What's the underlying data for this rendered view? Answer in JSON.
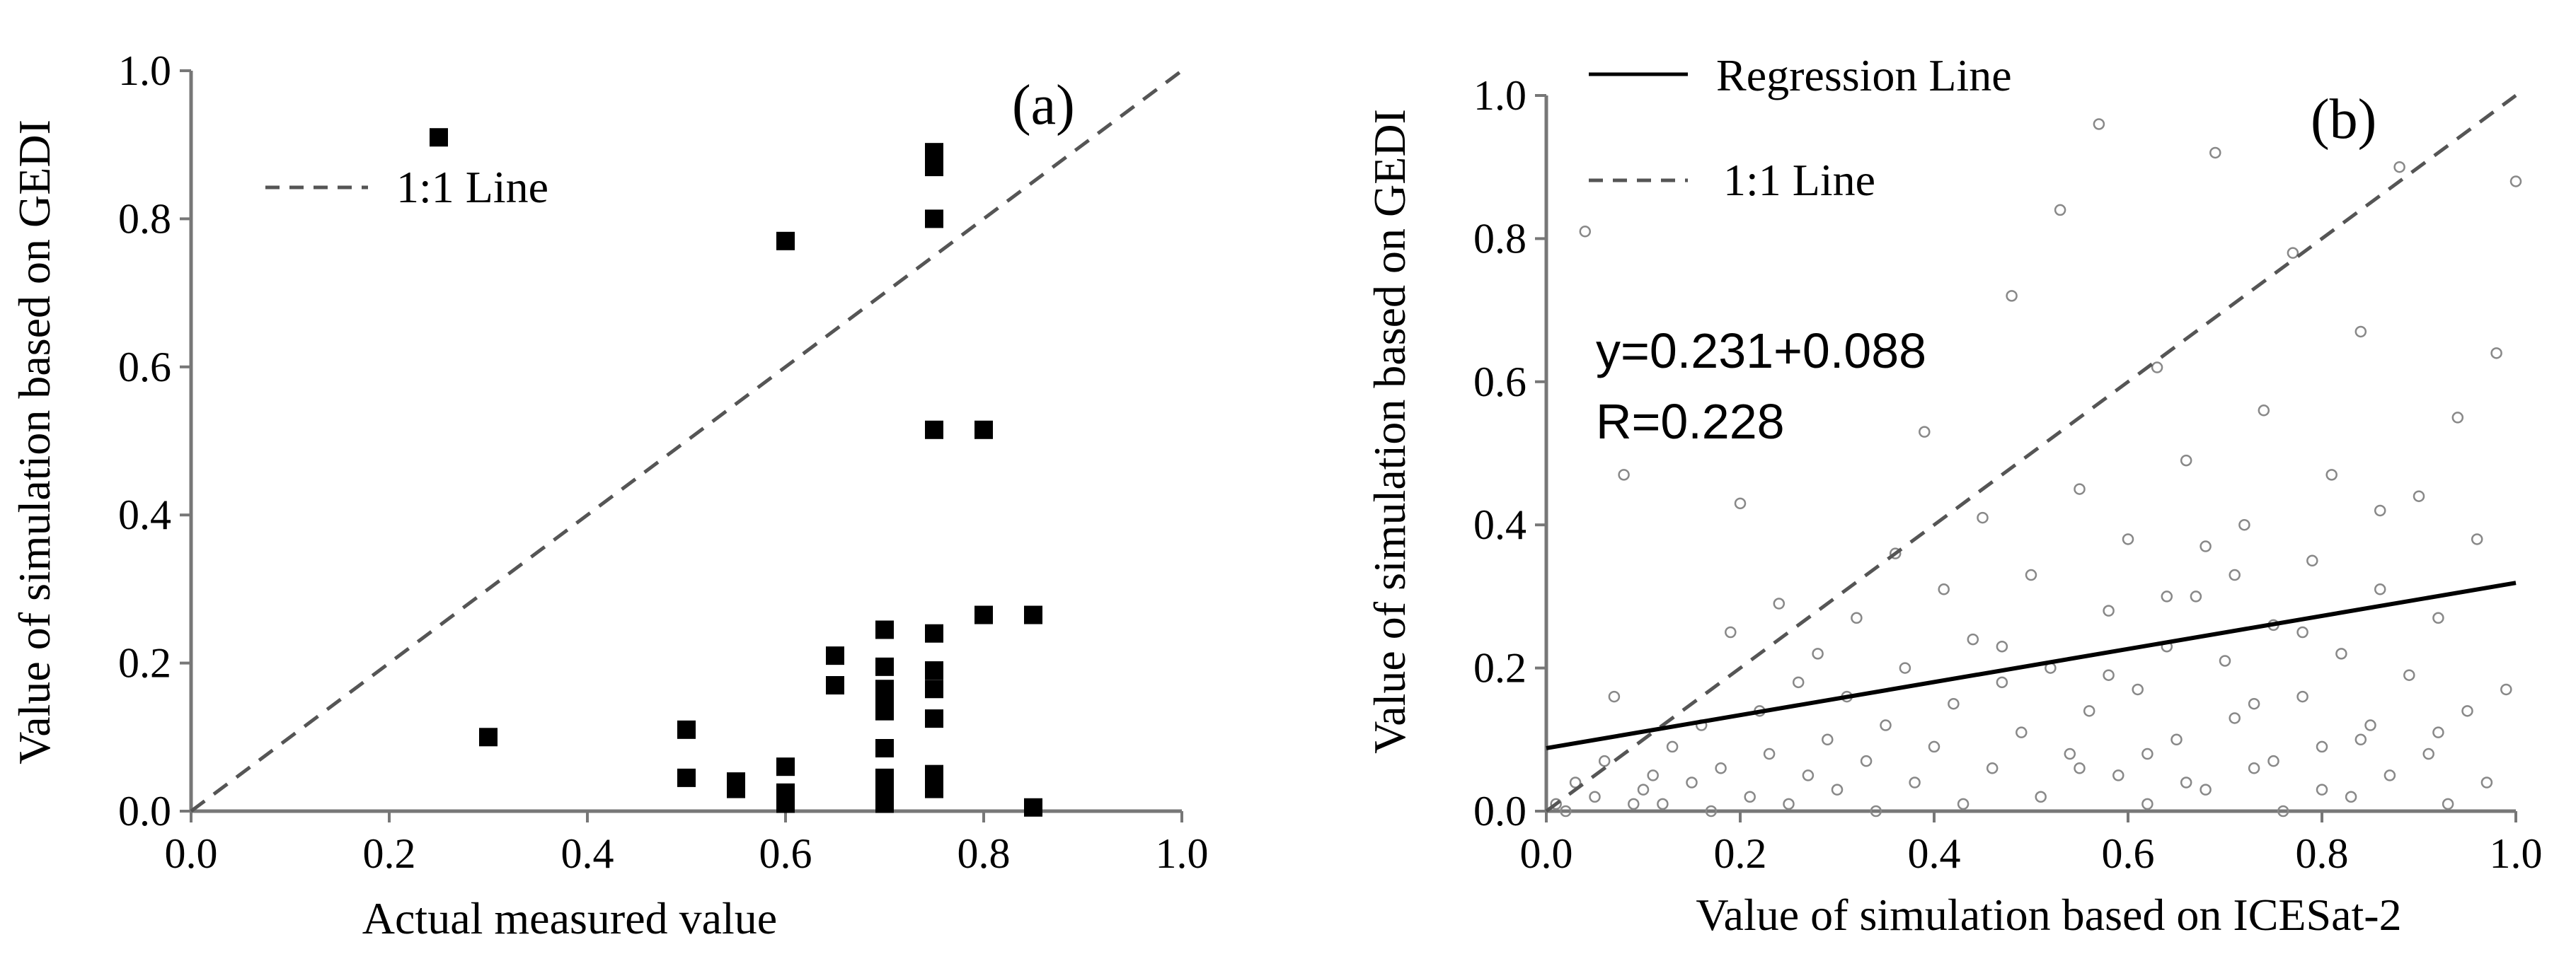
{
  "chart_data": [
    {
      "type": "scatter",
      "panel_label": "(a)",
      "xlabel": "Actual measured value",
      "ylabel": "Value of simulation based on GEDI",
      "xlim": [
        0.0,
        1.0
      ],
      "ylim": [
        0.0,
        1.0
      ],
      "xticks": [
        "0.0",
        "0.2",
        "0.4",
        "0.6",
        "0.8",
        "1.0"
      ],
      "yticks": [
        "0.0",
        "0.2",
        "0.4",
        "0.6",
        "0.8",
        "1.0"
      ],
      "grid": false,
      "legend": [
        {
          "name": "1:1 Line",
          "style": "dashed"
        }
      ],
      "legend_position": "top-left",
      "series": [
        {
          "name": "samples",
          "marker": "filled-square",
          "color": "#000000",
          "points": [
            [
              0.25,
              0.91
            ],
            [
              0.3,
              0.1
            ],
            [
              0.5,
              0.11
            ],
            [
              0.5,
              0.045
            ],
            [
              0.55,
              0.04
            ],
            [
              0.55,
              0.03
            ],
            [
              0.6,
              0.77
            ],
            [
              0.6,
              0.06
            ],
            [
              0.6,
              0.025
            ],
            [
              0.6,
              0.01
            ],
            [
              0.65,
              0.21
            ],
            [
              0.65,
              0.17
            ],
            [
              0.7,
              0.245
            ],
            [
              0.7,
              0.195
            ],
            [
              0.7,
              0.165
            ],
            [
              0.7,
              0.15
            ],
            [
              0.7,
              0.135
            ],
            [
              0.7,
              0.085
            ],
            [
              0.7,
              0.045
            ],
            [
              0.7,
              0.03
            ],
            [
              0.7,
              0.02
            ],
            [
              0.7,
              0.01
            ],
            [
              0.75,
              0.89
            ],
            [
              0.75,
              0.87
            ],
            [
              0.75,
              0.8
            ],
            [
              0.75,
              0.515
            ],
            [
              0.75,
              0.24
            ],
            [
              0.75,
              0.19
            ],
            [
              0.75,
              0.165
            ],
            [
              0.75,
              0.125
            ],
            [
              0.75,
              0.05
            ],
            [
              0.75,
              0.04
            ],
            [
              0.75,
              0.03
            ],
            [
              0.8,
              0.515
            ],
            [
              0.8,
              0.265
            ],
            [
              0.85,
              0.265
            ],
            [
              0.85,
              0.005
            ]
          ]
        }
      ],
      "reference_lines": [
        {
          "name": "1:1 Line",
          "from": [
            0,
            0
          ],
          "to": [
            1,
            1
          ],
          "style": "dashed"
        }
      ]
    },
    {
      "type": "scatter",
      "panel_label": "(b)",
      "xlabel": "Value of simulation based on ICESat-2",
      "ylabel": "Value of simulation based on GEDI",
      "xlim": [
        0.0,
        1.0
      ],
      "ylim": [
        0.0,
        1.0
      ],
      "xticks": [
        "0.0",
        "0.2",
        "0.4",
        "0.6",
        "0.8",
        "1.0"
      ],
      "yticks": [
        "0.0",
        "0.2",
        "0.4",
        "0.6",
        "0.8",
        "1.0"
      ],
      "grid": false,
      "legend": [
        {
          "name": "Regression Line",
          "style": "solid"
        },
        {
          "name": "1:1 Line",
          "style": "dashed"
        }
      ],
      "legend_position": "top-left",
      "annotation_lines": [
        "y=0.231+0.088",
        "R=0.228"
      ],
      "series": [
        {
          "name": "samples",
          "marker": "open-circle",
          "color": "#888888",
          "points": [
            [
              0.01,
              0.01
            ],
            [
              0.02,
              0.0
            ],
            [
              0.03,
              0.04
            ],
            [
              0.04,
              0.81
            ],
            [
              0.05,
              0.02
            ],
            [
              0.06,
              0.07
            ],
            [
              0.07,
              0.16
            ],
            [
              0.08,
              0.47
            ],
            [
              0.09,
              0.01
            ],
            [
              0.1,
              0.03
            ],
            [
              0.11,
              0.05
            ],
            [
              0.12,
              0.01
            ],
            [
              0.13,
              0.09
            ],
            [
              0.15,
              0.04
            ],
            [
              0.16,
              0.12
            ],
            [
              0.17,
              0.0
            ],
            [
              0.18,
              0.06
            ],
            [
              0.19,
              0.25
            ],
            [
              0.2,
              0.43
            ],
            [
              0.21,
              0.02
            ],
            [
              0.22,
              0.14
            ],
            [
              0.23,
              0.08
            ],
            [
              0.24,
              0.29
            ],
            [
              0.25,
              0.01
            ],
            [
              0.26,
              0.18
            ],
            [
              0.27,
              0.05
            ],
            [
              0.28,
              0.22
            ],
            [
              0.29,
              0.1
            ],
            [
              0.3,
              0.03
            ],
            [
              0.31,
              0.16
            ],
            [
              0.32,
              0.27
            ],
            [
              0.33,
              0.07
            ],
            [
              0.34,
              0.0
            ],
            [
              0.35,
              0.12
            ],
            [
              0.36,
              0.36
            ],
            [
              0.37,
              0.2
            ],
            [
              0.38,
              0.04
            ],
            [
              0.39,
              0.53
            ],
            [
              0.4,
              0.09
            ],
            [
              0.41,
              0.31
            ],
            [
              0.42,
              0.15
            ],
            [
              0.43,
              0.01
            ],
            [
              0.44,
              0.24
            ],
            [
              0.45,
              0.41
            ],
            [
              0.46,
              0.06
            ],
            [
              0.47,
              0.18
            ],
            [
              0.48,
              0.72
            ],
            [
              0.49,
              0.11
            ],
            [
              0.5,
              0.33
            ],
            [
              0.51,
              0.02
            ],
            [
              0.52,
              0.2
            ],
            [
              0.53,
              0.84
            ],
            [
              0.54,
              0.08
            ],
            [
              0.55,
              0.45
            ],
            [
              0.56,
              0.14
            ],
            [
              0.57,
              0.96
            ],
            [
              0.58,
              0.28
            ],
            [
              0.59,
              0.05
            ],
            [
              0.6,
              0.38
            ],
            [
              0.61,
              0.17
            ],
            [
              0.62,
              0.01
            ],
            [
              0.63,
              0.62
            ],
            [
              0.64,
              0.23
            ],
            [
              0.65,
              0.1
            ],
            [
              0.66,
              0.49
            ],
            [
              0.67,
              0.3
            ],
            [
              0.68,
              0.03
            ],
            [
              0.69,
              0.92
            ],
            [
              0.7,
              0.21
            ],
            [
              0.71,
              0.13
            ],
            [
              0.72,
              0.4
            ],
            [
              0.73,
              0.06
            ],
            [
              0.74,
              0.56
            ],
            [
              0.75,
              0.26
            ],
            [
              0.76,
              0.0
            ],
            [
              0.77,
              0.78
            ],
            [
              0.78,
              0.16
            ],
            [
              0.79,
              0.35
            ],
            [
              0.8,
              0.09
            ],
            [
              0.81,
              0.47
            ],
            [
              0.82,
              0.22
            ],
            [
              0.83,
              0.02
            ],
            [
              0.84,
              0.67
            ],
            [
              0.85,
              0.12
            ],
            [
              0.86,
              0.31
            ],
            [
              0.87,
              0.05
            ],
            [
              0.88,
              0.9
            ],
            [
              0.89,
              0.19
            ],
            [
              0.9,
              0.44
            ],
            [
              0.91,
              0.08
            ],
            [
              0.92,
              0.27
            ],
            [
              0.93,
              0.01
            ],
            [
              0.94,
              0.55
            ],
            [
              0.95,
              0.14
            ],
            [
              0.96,
              0.38
            ],
            [
              0.97,
              0.04
            ],
            [
              0.98,
              0.64
            ],
            [
              0.99,
              0.17
            ],
            [
              1.0,
              0.88
            ],
            [
              0.62,
              0.08
            ],
            [
              0.71,
              0.33
            ],
            [
              0.66,
              0.04
            ],
            [
              0.78,
              0.25
            ],
            [
              0.84,
              0.1
            ],
            [
              0.73,
              0.15
            ],
            [
              0.58,
              0.19
            ],
            [
              0.92,
              0.11
            ],
            [
              0.68,
              0.37
            ],
            [
              0.8,
              0.03
            ],
            [
              0.55,
              0.06
            ],
            [
              0.47,
              0.23
            ],
            [
              0.86,
              0.42
            ],
            [
              0.75,
              0.07
            ],
            [
              0.64,
              0.3
            ]
          ]
        }
      ],
      "reference_lines": [
        {
          "name": "Regression Line",
          "from": [
            0.0,
            0.088
          ],
          "to": [
            1.0,
            0.319
          ],
          "style": "solid"
        },
        {
          "name": "1:1 Line",
          "from": [
            0,
            0
          ],
          "to": [
            1,
            1
          ],
          "style": "dashed"
        }
      ]
    }
  ]
}
